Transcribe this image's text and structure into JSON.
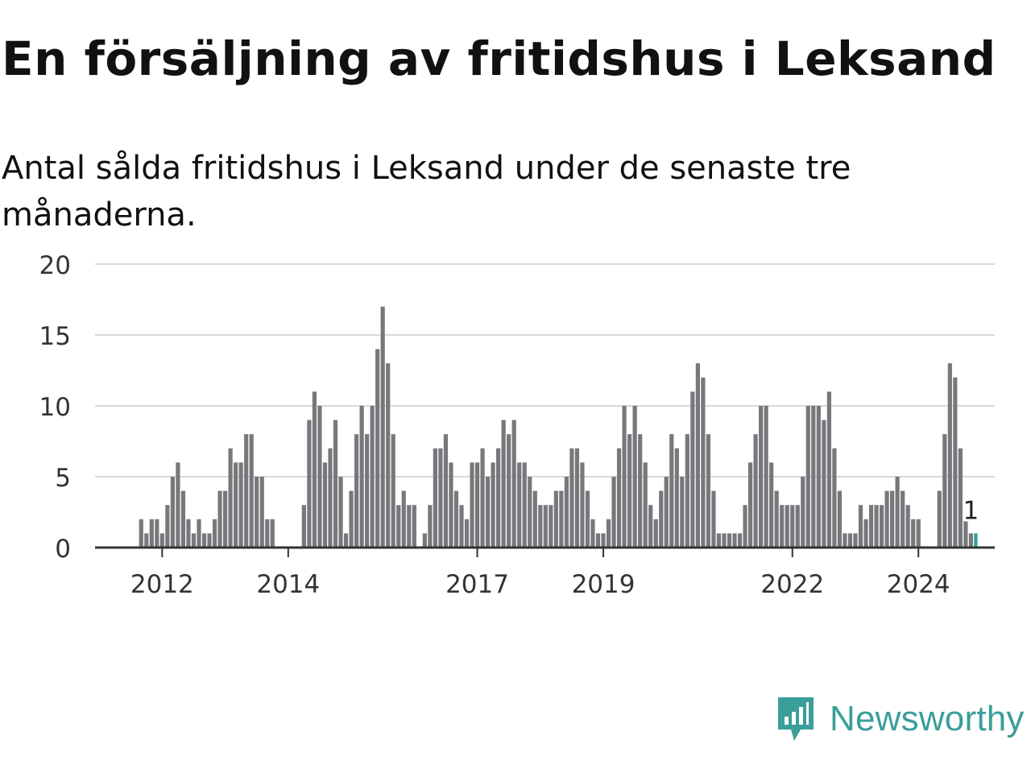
{
  "title": "En försäljning av fritidshus i Leksand",
  "subtitle": "Antal sålda fritidshus i Leksand under de senaste tre månaderna.",
  "logo": {
    "text": "Newsworthy",
    "icon": "newsworthy-logo-icon"
  },
  "colors": {
    "bar": "#77777c",
    "highlight": "#2a9d99",
    "grid": "#d9d9d9",
    "axis": "#333333",
    "brand": "#3a9e9a"
  },
  "chart_data": {
    "type": "bar",
    "y_ticks": [
      0,
      5,
      10,
      15,
      20
    ],
    "ylim": [
      0,
      20
    ],
    "x_tick_labels": [
      "2012",
      "2014",
      "2017",
      "2019",
      "2022",
      "2024"
    ],
    "bar_start_index": 8,
    "values": [
      2,
      1,
      2,
      2,
      1,
      3,
      5,
      6,
      4,
      2,
      1,
      2,
      1,
      1,
      2,
      4,
      4,
      7,
      6,
      6,
      8,
      8,
      5,
      5,
      2,
      2,
      0,
      0,
      0,
      0,
      0,
      3,
      9,
      11,
      10,
      6,
      7,
      9,
      5,
      1,
      4,
      8,
      10,
      8,
      10,
      14,
      17,
      13,
      8,
      3,
      4,
      3,
      3,
      0,
      1,
      3,
      7,
      7,
      8,
      6,
      4,
      3,
      2,
      6,
      6,
      7,
      5,
      6,
      7,
      9,
      8,
      9,
      6,
      6,
      5,
      4,
      3,
      3,
      3,
      4,
      4,
      5,
      7,
      7,
      6,
      4,
      2,
      1,
      1,
      2,
      5,
      7,
      10,
      8,
      10,
      8,
      6,
      3,
      2,
      4,
      5,
      8,
      7,
      5,
      8,
      11,
      13,
      12,
      8,
      4,
      1,
      1,
      1,
      1,
      1,
      3,
      6,
      8,
      10,
      10,
      6,
      4,
      3,
      3,
      3,
      3,
      5,
      10,
      10,
      10,
      9,
      11,
      7,
      4,
      1,
      1,
      1,
      3,
      2,
      3,
      3,
      3,
      4,
      4,
      5,
      4,
      3,
      2,
      2,
      0,
      0,
      0,
      4,
      8,
      13,
      12,
      7,
      2,
      1
    ],
    "highlight": {
      "value": 1,
      "label": "1"
    }
  }
}
